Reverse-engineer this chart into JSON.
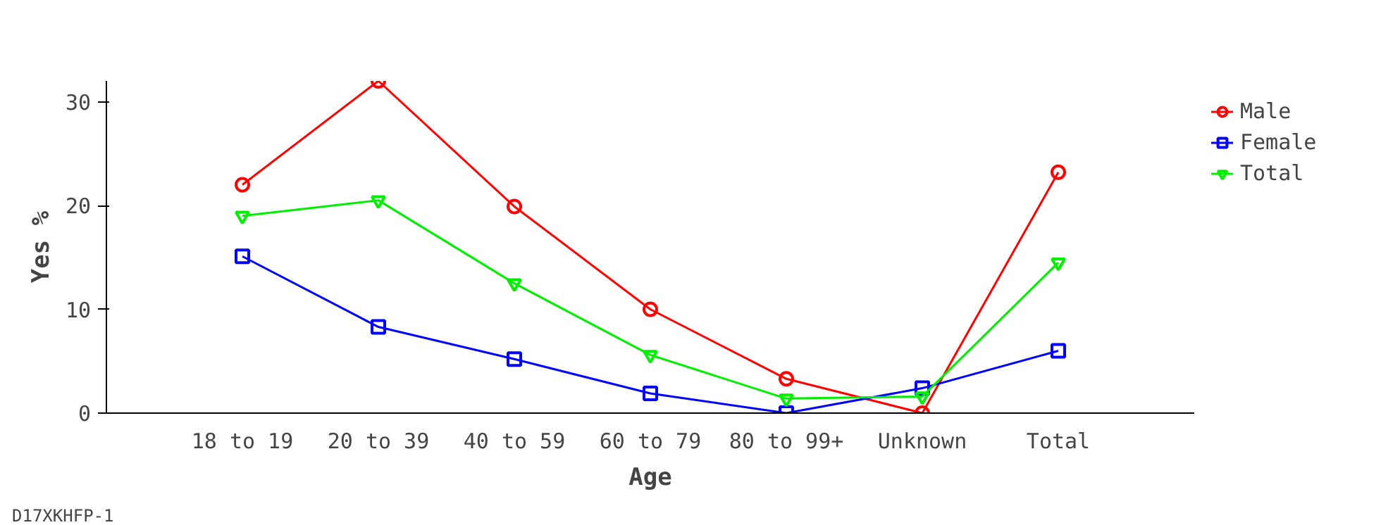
{
  "chart_data": {
    "type": "line",
    "xlabel": "Age",
    "ylabel": "Yes %",
    "categories": [
      "18 to 19",
      "20 to 39",
      "40 to 59",
      "60 to 79",
      "80 to 99+",
      "Unknown",
      "Total"
    ],
    "ylim": [
      0,
      32
    ],
    "yticks": [
      0,
      10,
      20,
      30
    ],
    "legend": "top right",
    "grid": false,
    "line_style": "solid",
    "series": [
      {
        "name": "Male",
        "color": "#ff0000",
        "marker": "circle",
        "values": [
          22.0,
          32.0,
          19.9,
          10.0,
          3.3,
          0,
          23.2
        ]
      },
      {
        "name": "Female",
        "color": "#0000ff",
        "marker": "square",
        "values": [
          15.1,
          8.3,
          5.2,
          1.9,
          0,
          2.4,
          6.0
        ]
      },
      {
        "name": "Total",
        "color": "#00ee00",
        "marker": "triangle",
        "values": [
          19.0,
          20.5,
          12.5,
          5.6,
          1.4,
          1.6,
          14.5
        ]
      }
    ],
    "annotations": [
      "D17XKHFP-1"
    ]
  }
}
